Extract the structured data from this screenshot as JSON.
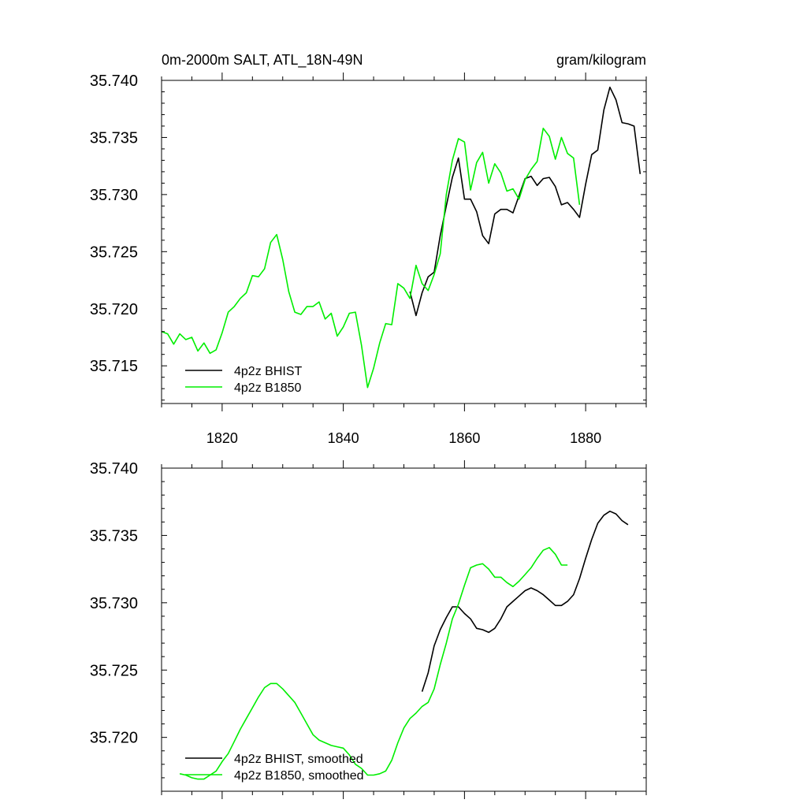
{
  "chart_data": [
    {
      "type": "line",
      "title_left": "0m-2000m SALT, ATL_18N-49N",
      "title_right": "gram/kilogram",
      "xlim": [
        1810,
        1890
      ],
      "ylim": [
        35.7117,
        35.74
      ],
      "yticks": [
        "35.740",
        "35.735",
        "35.730",
        "35.725",
        "35.720",
        "35.715"
      ],
      "ytick_values": [
        35.74,
        35.735,
        35.73,
        35.725,
        35.72,
        35.715
      ],
      "xticks": [
        "1820",
        "1840",
        "1860",
        "1880"
      ],
      "xtick_values": [
        1820,
        1840,
        1860,
        1880
      ],
      "series": [
        {
          "name": "4p2z BHIST",
          "color": "#000000",
          "x": [
            1851,
            1852,
            1853,
            1854,
            1855,
            1856,
            1857,
            1858,
            1859,
            1860,
            1861,
            1862,
            1863,
            1864,
            1865,
            1866,
            1867,
            1868,
            1869,
            1870,
            1871,
            1872,
            1873,
            1874,
            1875,
            1876,
            1877,
            1878,
            1879,
            1880,
            1881,
            1882,
            1883,
            1884,
            1885,
            1886,
            1887,
            1888,
            1889
          ],
          "y": [
            35.7215,
            35.7194,
            35.7214,
            35.7228,
            35.7232,
            35.7264,
            35.729,
            35.7315,
            35.7332,
            35.7296,
            35.7296,
            35.7285,
            35.7264,
            35.7257,
            35.7283,
            35.7287,
            35.7287,
            35.7284,
            35.7299,
            35.7314,
            35.7316,
            35.7308,
            35.7314,
            35.7315,
            35.7307,
            35.7291,
            35.7293,
            35.7287,
            35.728,
            35.7309,
            35.7335,
            35.7339,
            35.7374,
            35.7394,
            35.7383,
            35.7363,
            35.7362,
            35.736,
            35.7318
          ]
        },
        {
          "name": "4p2z B1850",
          "color": "#00ee00",
          "x": [
            1810,
            1811,
            1812,
            1813,
            1814,
            1815,
            1816,
            1817,
            1818,
            1819,
            1820,
            1821,
            1822,
            1823,
            1824,
            1825,
            1826,
            1827,
            1828,
            1829,
            1830,
            1831,
            1832,
            1833,
            1834,
            1835,
            1836,
            1837,
            1838,
            1839,
            1840,
            1841,
            1842,
            1843,
            1844,
            1845,
            1846,
            1847,
            1848,
            1849,
            1850,
            1851,
            1852,
            1853,
            1854,
            1855,
            1856,
            1857,
            1858,
            1859,
            1860,
            1861,
            1862,
            1863,
            1864,
            1865,
            1866,
            1867,
            1868,
            1869,
            1870,
            1871,
            1872,
            1873,
            1874,
            1875,
            1876,
            1877,
            1878,
            1879
          ],
          "y": [
            35.718,
            35.7178,
            35.7169,
            35.7178,
            35.7173,
            35.7175,
            35.7163,
            35.717,
            35.7161,
            35.7164,
            35.7179,
            35.7197,
            35.7202,
            35.7209,
            35.7214,
            35.7229,
            35.7228,
            35.7235,
            35.7258,
            35.7265,
            35.7243,
            35.7215,
            35.7197,
            35.7195,
            35.7202,
            35.7202,
            35.7206,
            35.7191,
            35.7196,
            35.7176,
            35.7184,
            35.7196,
            35.7197,
            35.7168,
            35.7131,
            35.7148,
            35.717,
            35.7187,
            35.7186,
            35.7222,
            35.7218,
            35.7209,
            35.7238,
            35.7222,
            35.7216,
            35.723,
            35.7248,
            35.73,
            35.733,
            35.7349,
            35.7346,
            35.7304,
            35.7328,
            35.7337,
            35.731,
            35.7327,
            35.7319,
            35.7303,
            35.7305,
            35.7296,
            35.7313,
            35.7322,
            35.7329,
            35.7358,
            35.7351,
            35.7331,
            35.735,
            35.7336,
            35.7332,
            35.7291
          ]
        }
      ]
    },
    {
      "type": "line",
      "xlim": [
        1810,
        1890
      ],
      "ylim": [
        35.716,
        35.74
      ],
      "yticks": [
        "35.740",
        "35.735",
        "35.730",
        "35.725",
        "35.720"
      ],
      "ytick_values": [
        35.74,
        35.735,
        35.73,
        35.725,
        35.72
      ],
      "xtick_values": [
        1820,
        1840,
        1860,
        1880
      ],
      "series": [
        {
          "name": "4p2z BHIST, smoothed",
          "color": "#000000",
          "x": [
            1853,
            1854,
            1855,
            1856,
            1857,
            1858,
            1859,
            1860,
            1861,
            1862,
            1863,
            1864,
            1865,
            1866,
            1867,
            1868,
            1869,
            1870,
            1871,
            1872,
            1873,
            1874,
            1875,
            1876,
            1877,
            1878,
            1879,
            1880,
            1881,
            1882,
            1883,
            1884,
            1885,
            1886,
            1887
          ],
          "y": [
            35.7234,
            35.7248,
            35.7268,
            35.728,
            35.7289,
            35.7297,
            35.7297,
            35.7292,
            35.7288,
            35.7281,
            35.728,
            35.7278,
            35.7281,
            35.7288,
            35.7297,
            35.7301,
            35.7305,
            35.7309,
            35.7311,
            35.7309,
            35.7306,
            35.7302,
            35.7298,
            35.7298,
            35.7301,
            35.7306,
            35.7318,
            35.7333,
            35.7347,
            35.7359,
            35.7365,
            35.7368,
            35.7366,
            35.7361,
            35.7358
          ]
        },
        {
          "name": "4p2z B1850, smoothed",
          "color": "#00ee00",
          "x": [
            1813,
            1814,
            1815,
            1816,
            1817,
            1818,
            1819,
            1820,
            1821,
            1822,
            1823,
            1824,
            1825,
            1826,
            1827,
            1828,
            1829,
            1830,
            1831,
            1832,
            1833,
            1834,
            1835,
            1836,
            1837,
            1838,
            1839,
            1840,
            1841,
            1842,
            1843,
            1844,
            1845,
            1846,
            1847,
            1848,
            1849,
            1850,
            1851,
            1852,
            1853,
            1854,
            1855,
            1856,
            1857,
            1858,
            1859,
            1860,
            1861,
            1862,
            1863,
            1864,
            1865,
            1866,
            1867,
            1868,
            1869,
            1870,
            1871,
            1872,
            1873,
            1874,
            1875,
            1876,
            1877
          ],
          "y": [
            35.7173,
            35.7172,
            35.717,
            35.7169,
            35.7169,
            35.7172,
            35.7175,
            35.7182,
            35.7188,
            35.7197,
            35.7206,
            35.7214,
            35.7222,
            35.723,
            35.7237,
            35.724,
            35.724,
            35.7236,
            35.7231,
            35.7226,
            35.7218,
            35.721,
            35.7202,
            35.7198,
            35.7196,
            35.7194,
            35.7193,
            35.7192,
            35.7187,
            35.718,
            35.7177,
            35.7172,
            35.7172,
            35.7173,
            35.7175,
            35.7183,
            35.7196,
            35.7207,
            35.7214,
            35.7218,
            35.7223,
            35.7226,
            35.7236,
            35.7254,
            35.727,
            35.7288,
            35.7299,
            35.7313,
            35.7326,
            35.7328,
            35.7329,
            35.7325,
            35.7319,
            35.7319,
            35.7315,
            35.7312,
            35.7316,
            35.7321,
            35.7326,
            35.7333,
            35.7339,
            35.7341,
            35.7336,
            35.7328,
            35.7328
          ]
        }
      ]
    }
  ]
}
